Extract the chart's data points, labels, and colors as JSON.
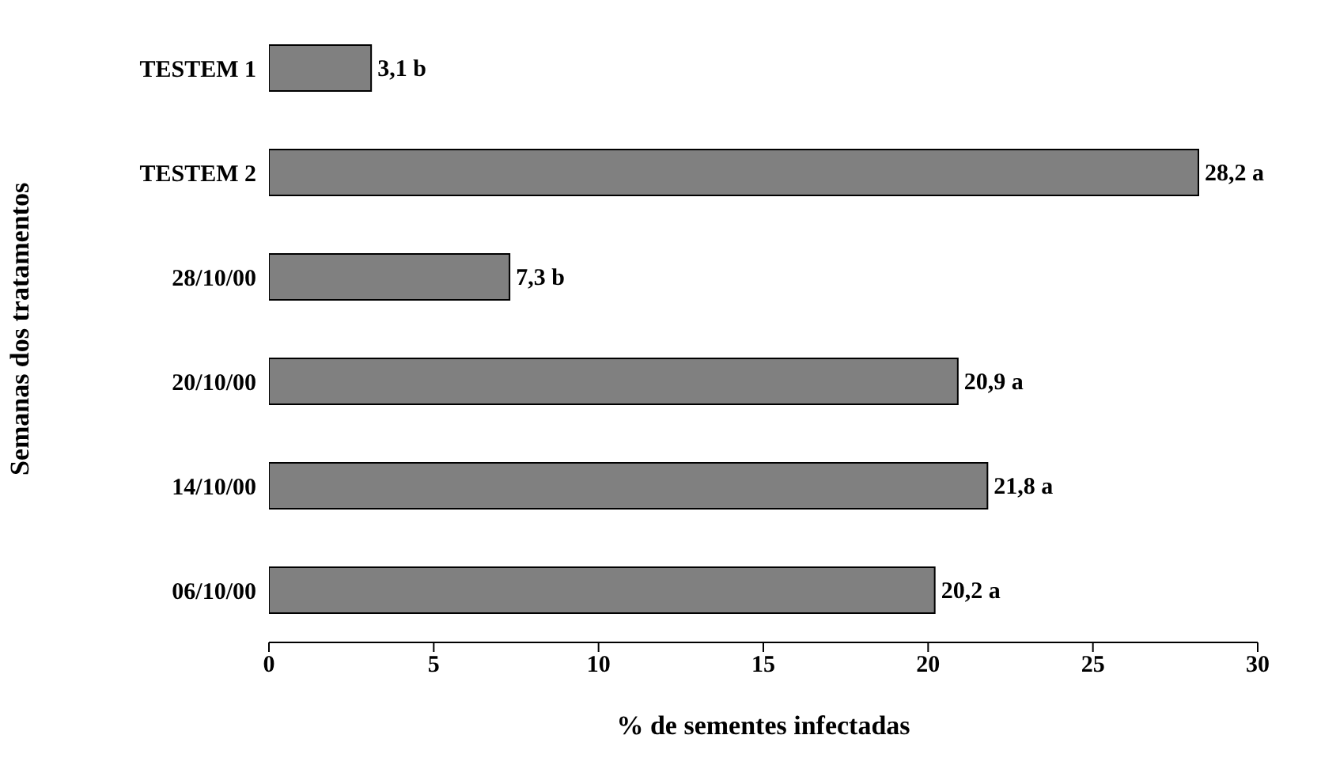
{
  "chart_data": {
    "type": "bar",
    "orientation": "horizontal",
    "xlabel": "% de sementes infectadas",
    "ylabel": "Semanas dos tratamentos",
    "categories": [
      "TESTEM 1",
      "TESTEM 2",
      "28/10/00",
      "20/10/00",
      "14/10/00",
      "06/10/00"
    ],
    "values": [
      3.1,
      28.2,
      7.3,
      20.9,
      21.8,
      20.2
    ],
    "value_labels": [
      "3,1 b",
      "28,2 a",
      "7,3 b",
      "20,9 a",
      "21,8 a",
      "20,2 a"
    ],
    "color": "#808080",
    "xlim": [
      0,
      30
    ],
    "xticks": [
      0,
      5,
      10,
      15,
      20,
      25,
      30
    ],
    "grid": false,
    "legend": false
  }
}
